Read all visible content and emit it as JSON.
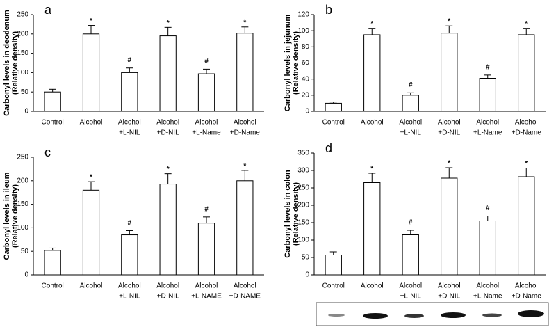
{
  "chart_data": [
    {
      "type": "bar",
      "panel": "a",
      "ylabel": [
        "Carbonyl levels in deodenum",
        "(Relative density)"
      ],
      "categories": [
        [
          "Control"
        ],
        [
          "Alcohol"
        ],
        [
          "Alcohol",
          "+L-NIL"
        ],
        [
          "Alcohol",
          "+D-NIL"
        ],
        [
          "Alcohol",
          "+L-Name"
        ],
        [
          "Alcohol",
          "+D-Name"
        ]
      ],
      "values": [
        50,
        200,
        100,
        195,
        97,
        202
      ],
      "errors": [
        7,
        22,
        12,
        22,
        12,
        16
      ],
      "markers": [
        null,
        "*",
        "#",
        "*",
        "#",
        "*"
      ],
      "color": "#ffffff",
      "ylim": [
        0,
        250
      ],
      "yticks": [
        0,
        50,
        100,
        150,
        200,
        250
      ]
    },
    {
      "type": "bar",
      "panel": "b",
      "ylabel": [
        "Carbonyl levels in jejunum",
        "(Relative density)"
      ],
      "categories": [
        [
          "Control"
        ],
        [
          "Alcohol"
        ],
        [
          "Alcohol",
          "+L-NIL"
        ],
        [
          "Alcohol",
          "+D-NIL"
        ],
        [
          "Alcohol",
          "+L-Name"
        ],
        [
          "Alcohol",
          "+D-Name"
        ]
      ],
      "values": [
        10,
        95,
        20,
        97,
        41,
        95
      ],
      "errors": [
        1.5,
        8,
        3,
        9,
        4,
        8
      ],
      "markers": [
        null,
        "*",
        "#",
        "*",
        "#",
        "*"
      ],
      "color": "#ffffff",
      "ylim": [
        0,
        120
      ],
      "yticks": [
        0,
        20,
        40,
        60,
        80,
        100,
        120
      ]
    },
    {
      "type": "bar",
      "panel": "c",
      "ylabel": [
        "Carbonyl levels in ileum",
        "(Relative density)"
      ],
      "categories": [
        [
          "Control"
        ],
        [
          "Alcohol"
        ],
        [
          "Alcohol",
          "+L-NIL"
        ],
        [
          "Alcohol",
          "+D-NIL"
        ],
        [
          "Alcohol",
          "+L-NAME"
        ],
        [
          "Alcohol",
          "+D-NAME"
        ]
      ],
      "values": [
        52,
        180,
        85,
        193,
        110,
        200
      ],
      "errors": [
        5,
        18,
        9,
        22,
        13,
        22
      ],
      "markers": [
        null,
        "*",
        "#",
        "*",
        "#",
        "*"
      ],
      "color": "#ffffff",
      "ylim": [
        0,
        250
      ],
      "yticks": [
        0,
        50,
        100,
        150,
        200,
        250
      ]
    },
    {
      "type": "bar",
      "panel": "d",
      "ylabel": [
        "Carbonyl levels in colon",
        "(Relative density)"
      ],
      "categories": [
        [
          "Control"
        ],
        [
          "Alcohol"
        ],
        [
          "Alcohol",
          "+L-NIL"
        ],
        [
          "Alcohol",
          "+D-NIL"
        ],
        [
          "Alcohol",
          "+L-Name"
        ],
        [
          "Alcohol",
          "+D-Name"
        ]
      ],
      "values": [
        57,
        265,
        115,
        278,
        155,
        282
      ],
      "errors": [
        9,
        27,
        13,
        30,
        14,
        25
      ],
      "markers": [
        null,
        "*",
        "#",
        "*",
        "#",
        "*"
      ],
      "color": "#ffffff",
      "ylim": [
        0,
        350
      ],
      "yticks": [
        0,
        50,
        100,
        150,
        200,
        250,
        300,
        350
      ]
    }
  ]
}
